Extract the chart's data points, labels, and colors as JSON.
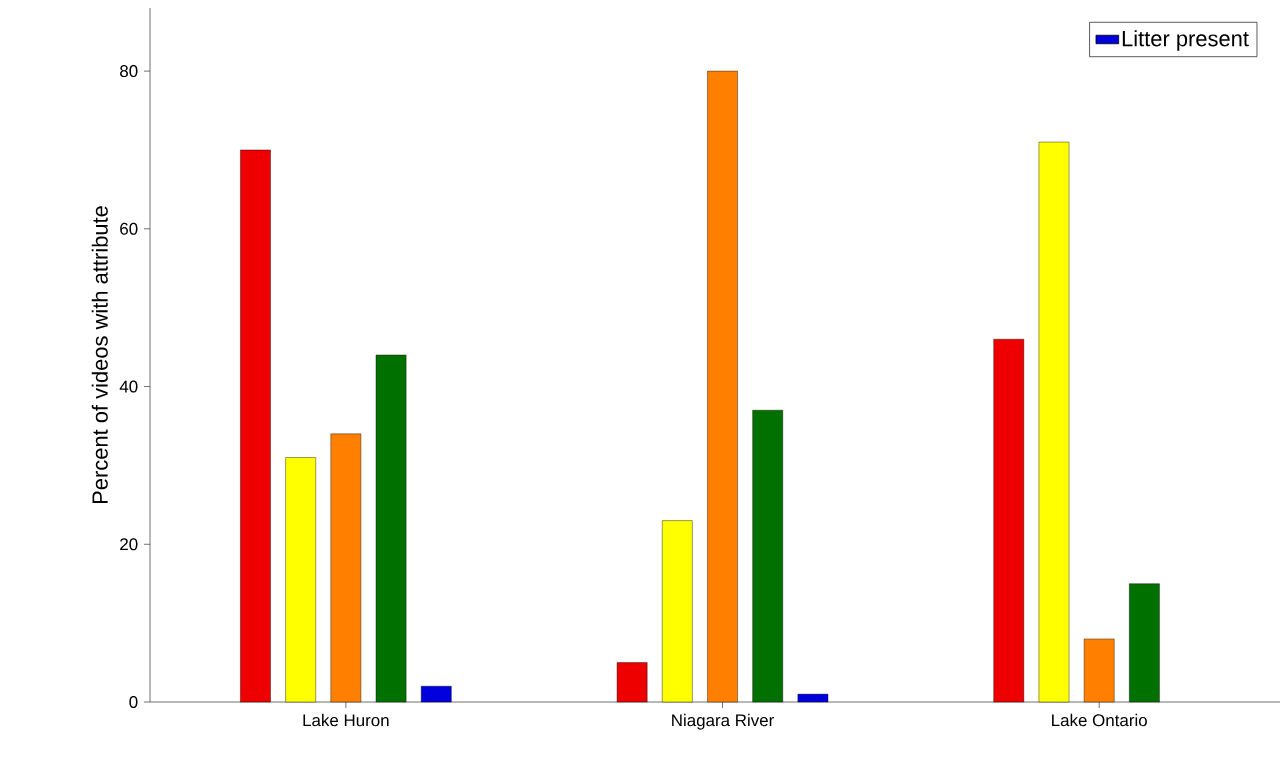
{
  "chart_data": {
    "type": "bar",
    "ylabel": "Percent of videos with attribute",
    "categories": [
      "Lake Huron",
      "Niagara River",
      "Lake Ontario"
    ],
    "series": [
      {
        "color": "#ee0000",
        "values": [
          70,
          5,
          46
        ]
      },
      {
        "color": "#ffff00",
        "values": [
          31,
          23,
          71
        ]
      },
      {
        "color": "#ff8000",
        "values": [
          34,
          80,
          8
        ]
      },
      {
        "color": "#007000",
        "values": [
          44,
          37,
          15
        ]
      },
      {
        "name": "Litter present",
        "color": "#0000dd",
        "values": [
          2,
          1,
          null
        ]
      }
    ],
    "ylim": [
      0,
      88
    ],
    "yticks": [
      0,
      20,
      40,
      60,
      80
    ],
    "grid": false,
    "legend": "top right"
  }
}
